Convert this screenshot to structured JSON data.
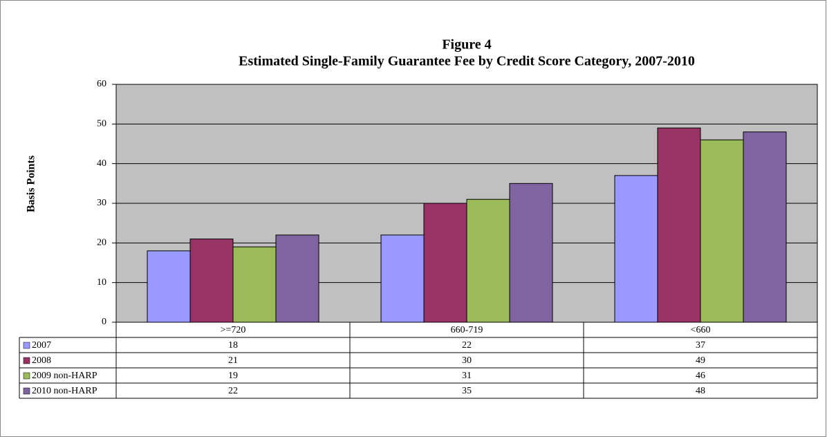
{
  "chart_data": {
    "type": "bar",
    "title": "Figure 4",
    "subtitle": "Estimated Single-Family Guarantee Fee by Credit Score Category, 2007-2010",
    "y_label": "Basis Points",
    "categories": [
      ">=720",
      "660-719",
      "<660"
    ],
    "series": [
      {
        "name": "2007",
        "color": "#9999ff",
        "values": [
          18,
          22,
          37
        ]
      },
      {
        "name": "2008",
        "color": "#993366",
        "values": [
          21,
          30,
          49
        ]
      },
      {
        "name": "2009 non-HARP",
        "color": "#9bbb59",
        "values": [
          19,
          31,
          46
        ]
      },
      {
        "name": "2010 non-HARP",
        "color": "#8064a2",
        "values": [
          22,
          35,
          48
        ]
      }
    ],
    "ylim": [
      0,
      60
    ],
    "yticks": [
      0,
      10,
      20,
      30,
      40,
      50,
      60
    ],
    "grid": true,
    "plot_background": "#c0c0c0"
  }
}
